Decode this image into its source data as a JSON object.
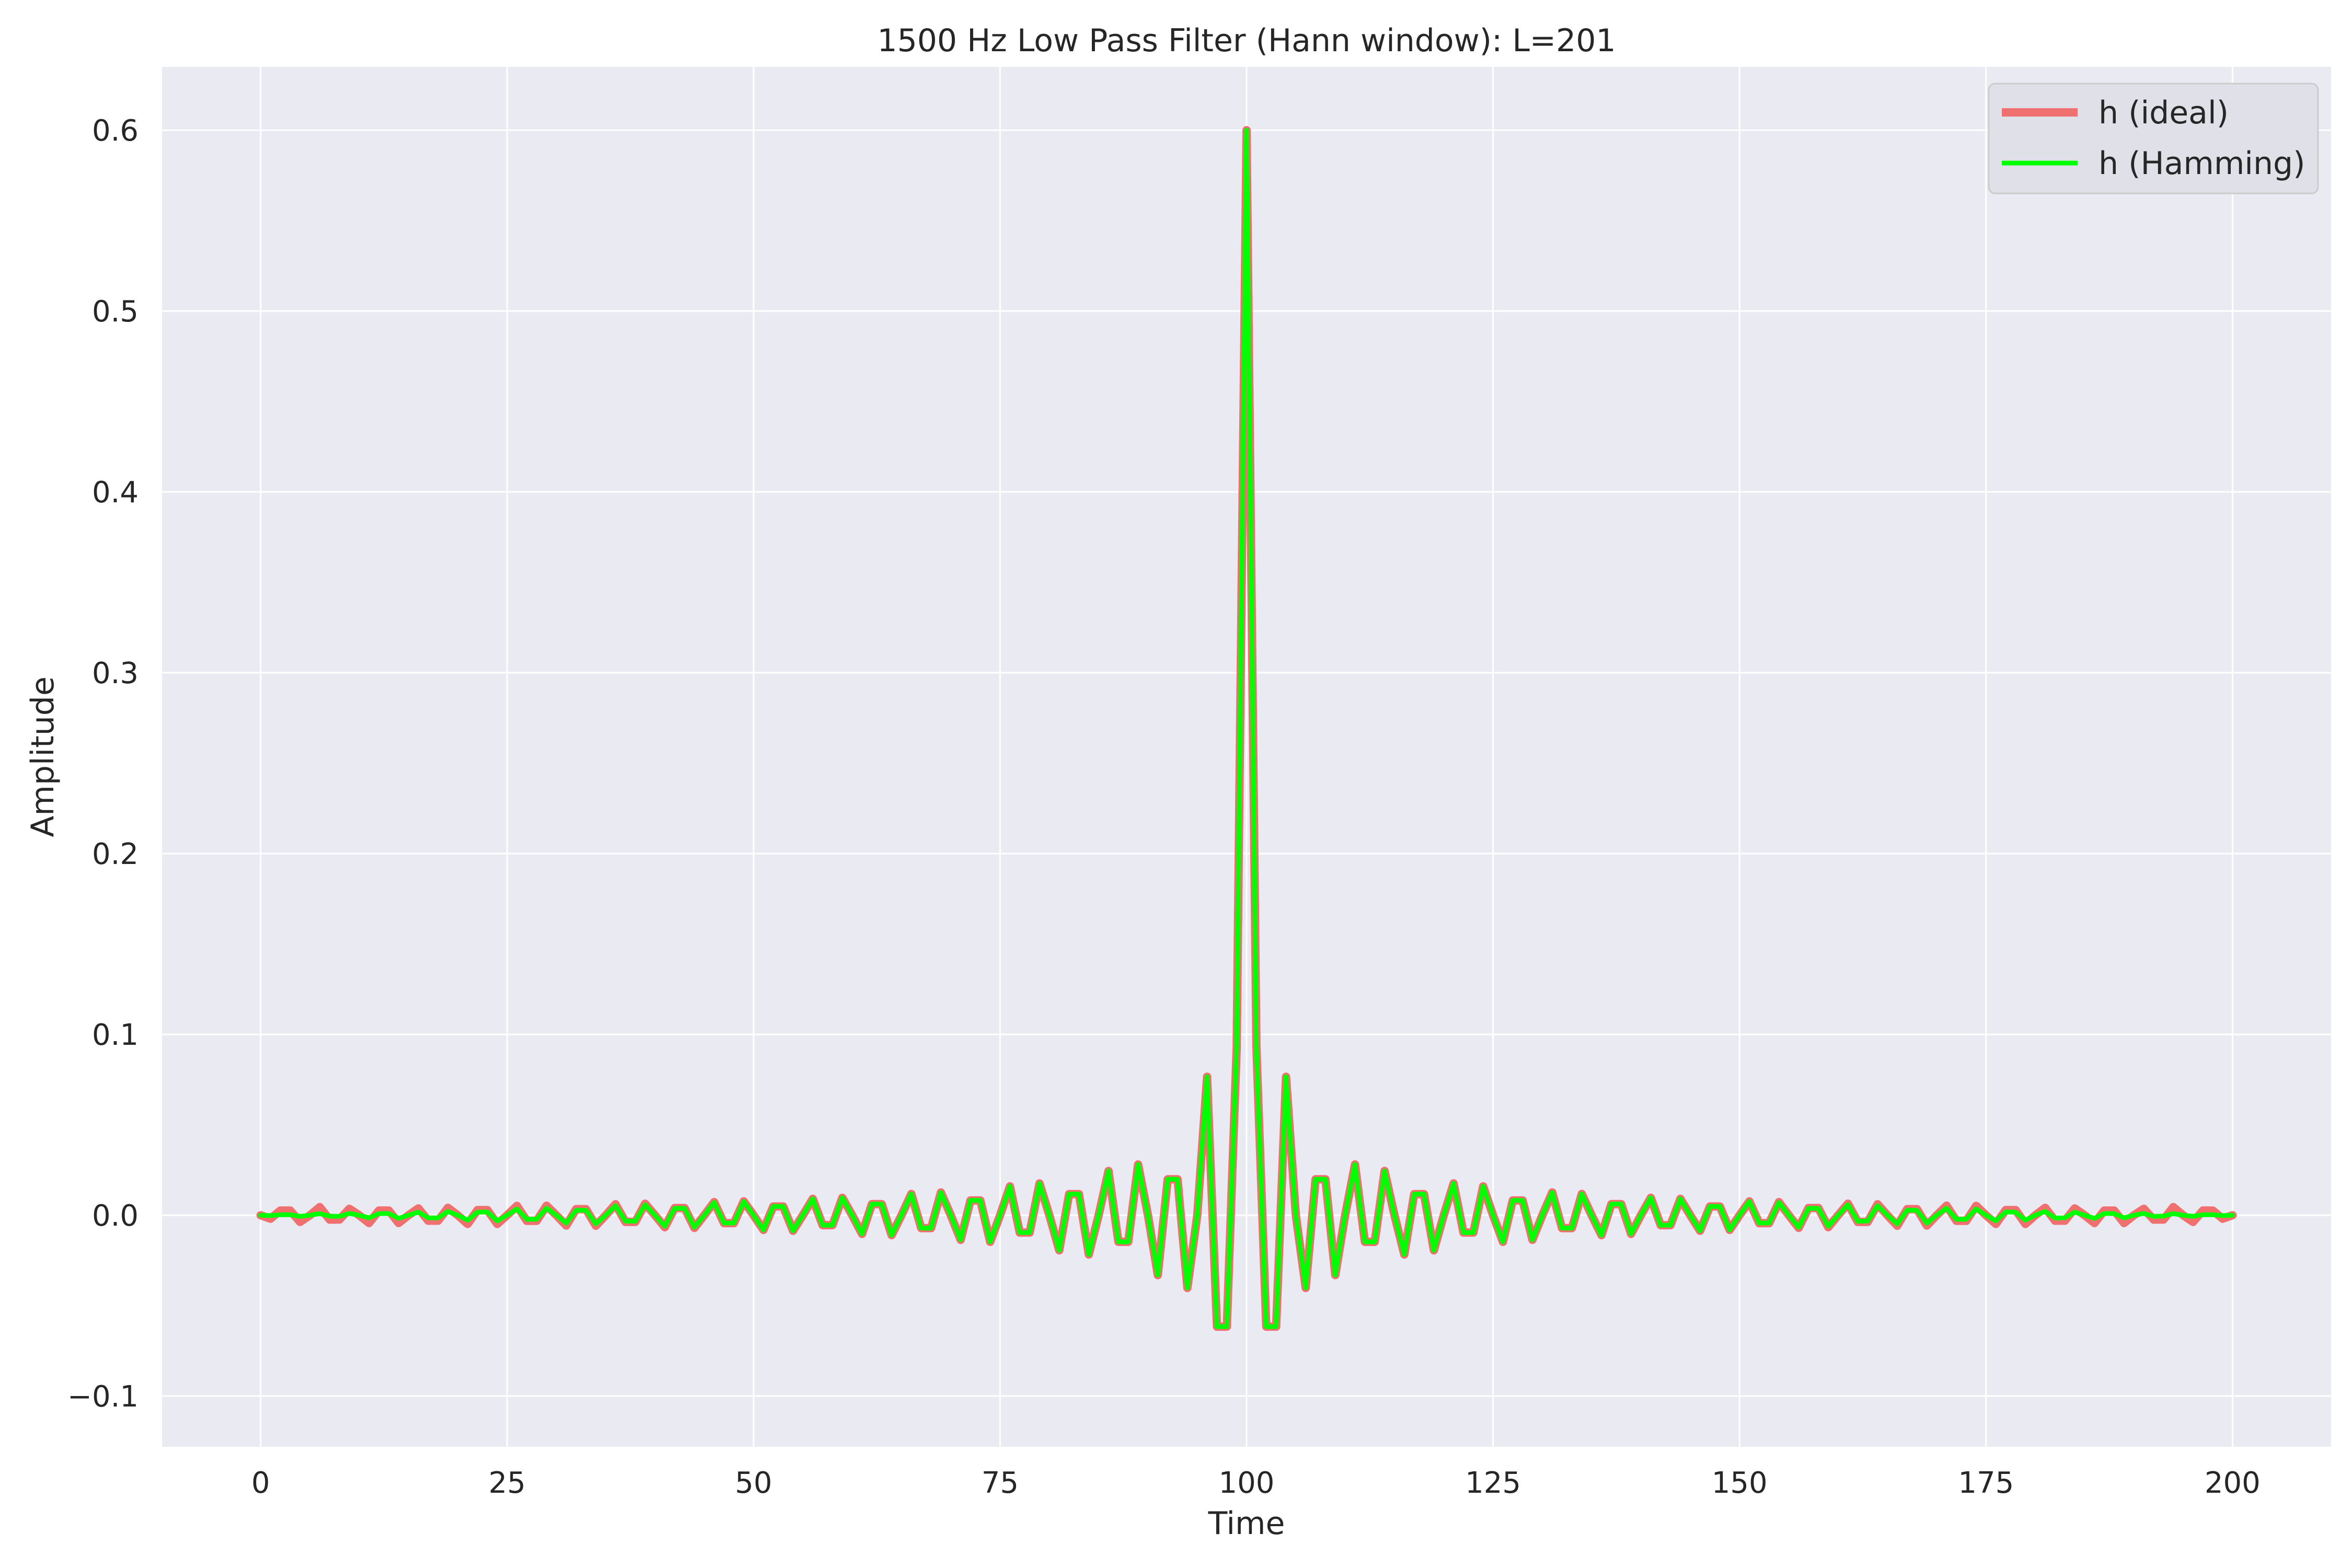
{
  "chart_data": {
    "type": "line",
    "title": "1500 Hz Low Pass Filter (Hann window): L=201",
    "xlabel": "Time",
    "ylabel": "Amplitude",
    "xlim": [
      -10,
      210
    ],
    "ylim": [
      -0.128,
      0.635
    ],
    "grid": true,
    "legend_position": "top-right",
    "x_ticks": [
      0,
      25,
      50,
      75,
      100,
      125,
      150,
      175,
      200
    ],
    "x_tick_labels": [
      "0",
      "25",
      "50",
      "75",
      "100",
      "125",
      "150",
      "175",
      "200"
    ],
    "y_ticks": [
      -0.1,
      0.0,
      0.1,
      0.2,
      0.3,
      0.4,
      0.5,
      0.6
    ],
    "y_tick_labels": [
      "−0.1",
      "0.0",
      "0.1",
      "0.2",
      "0.3",
      "0.4",
      "0.5",
      "0.6"
    ],
    "x": [
      0,
      1,
      2,
      3,
      4,
      5,
      6,
      7,
      8,
      9,
      10,
      11,
      12,
      13,
      14,
      15,
      16,
      17,
      18,
      19,
      20,
      21,
      22,
      23,
      24,
      25,
      26,
      27,
      28,
      29,
      30,
      31,
      32,
      33,
      34,
      35,
      36,
      37,
      38,
      39,
      40,
      41,
      42,
      43,
      44,
      45,
      46,
      47,
      48,
      49,
      50,
      51,
      52,
      53,
      54,
      55,
      56,
      57,
      58,
      59,
      60,
      61,
      62,
      63,
      64,
      65,
      66,
      67,
      68,
      69,
      70,
      71,
      72,
      73,
      74,
      75,
      76,
      77,
      78,
      79,
      80,
      81,
      82,
      83,
      84,
      85,
      86,
      87,
      88,
      89,
      90,
      91,
      92,
      93,
      94,
      95,
      96,
      97,
      98,
      99,
      100,
      101,
      102,
      103,
      104,
      105,
      106,
      107,
      108,
      109,
      110,
      111,
      112,
      113,
      114,
      115,
      116,
      117,
      118,
      119,
      120,
      121,
      122,
      123,
      124,
      125,
      126,
      127,
      128,
      129,
      130,
      131,
      132,
      133,
      134,
      135,
      136,
      137,
      138,
      139,
      140,
      141,
      142,
      143,
      144,
      145,
      146,
      147,
      148,
      149,
      150,
      151,
      152,
      153,
      154,
      155,
      156,
      157,
      158,
      159,
      160,
      161,
      162,
      163,
      164,
      165,
      166,
      167,
      168,
      169,
      170,
      171,
      172,
      173,
      174,
      175,
      176,
      177,
      178,
      179,
      180,
      181,
      182,
      183,
      184,
      185,
      186,
      187,
      188,
      189,
      190,
      191,
      192,
      193,
      194,
      195,
      196,
      197,
      198,
      199,
      200
    ],
    "series": [
      {
        "name": "h (ideal)",
        "color": "#f07070",
        "values": [
          0.0,
          -0.0019,
          0.0026,
          0.0026,
          -0.0037,
          0.0,
          0.0045,
          -0.0024,
          -0.0024,
          0.0036,
          0.0,
          -0.0043,
          0.0026,
          0.0026,
          -0.0043,
          0.0,
          0.0038,
          -0.003,
          -0.003,
          0.0041,
          0.0,
          -0.0048,
          0.0029,
          0.0029,
          -0.0048,
          0.0,
          0.0052,
          -0.0031,
          -0.0031,
          0.0053,
          0.0,
          -0.0057,
          0.0034,
          0.0034,
          -0.0058,
          0.0,
          0.0061,
          -0.0037,
          -0.0037,
          0.0064,
          0.0,
          -0.0066,
          0.004,
          0.004,
          -0.007,
          0.0,
          0.0073,
          -0.0044,
          -0.0044,
          0.0077,
          0.0,
          -0.0081,
          0.0049,
          0.0049,
          -0.0086,
          0.0,
          0.0091,
          -0.0055,
          -0.0055,
          0.0097,
          0.0,
          -0.0103,
          0.0062,
          0.0062,
          -0.011,
          0.0,
          0.0118,
          -0.0071,
          -0.0071,
          0.0126,
          0.0,
          -0.0136,
          0.0082,
          0.0082,
          -0.0147,
          0.0,
          0.016,
          -0.0096,
          -0.0096,
          0.0176,
          0.0,
          -0.0194,
          0.0117,
          0.0117,
          -0.0217,
          0.0,
          0.0245,
          -0.0147,
          -0.0147,
          0.0281,
          0.0,
          -0.0331,
          0.0199,
          0.0199,
          -0.0402,
          0.0,
          0.0766,
          -0.0616,
          -0.0616,
          0.0926,
          0.6,
          0.0926,
          -0.0616,
          -0.0616,
          0.0766,
          0.0,
          -0.0402,
          0.0199,
          0.0199,
          -0.0331,
          0.0,
          0.0281,
          -0.0147,
          -0.0147,
          0.0245,
          0.0,
          -0.0217,
          0.0117,
          0.0117,
          -0.0194,
          0.0,
          0.0176,
          -0.0096,
          -0.0096,
          0.016,
          0.0,
          -0.0147,
          0.0082,
          0.0082,
          -0.0136,
          0.0,
          0.0126,
          -0.0071,
          -0.0071,
          0.0118,
          0.0,
          -0.011,
          0.0062,
          0.0062,
          -0.0103,
          0.0,
          0.0097,
          -0.0055,
          -0.0055,
          0.0091,
          0.0,
          -0.0086,
          0.0049,
          0.0049,
          -0.0081,
          0.0,
          0.0077,
          -0.0044,
          -0.0044,
          0.0073,
          0.0,
          -0.007,
          0.004,
          0.004,
          -0.0066,
          0.0,
          0.0064,
          -0.0037,
          -0.0037,
          0.0061,
          0.0,
          -0.0058,
          0.0034,
          0.0034,
          -0.0057,
          0.0,
          0.0053,
          -0.0031,
          -0.0031,
          0.0052,
          0.0,
          -0.0048,
          0.0029,
          0.0029,
          -0.0048,
          0.0,
          0.0041,
          -0.003,
          -0.003,
          0.0038,
          0.0,
          -0.0043,
          0.0026,
          0.0026,
          -0.0043,
          0.0,
          0.0036,
          -0.0024,
          -0.0024,
          0.0045,
          0.0,
          -0.0037,
          0.0026,
          0.0026,
          -0.0019,
          0.0
        ]
      },
      {
        "name": "h (Hamming)",
        "color": "#00ff00",
        "values": [
          0.0,
          -0.0002,
          0.0003,
          0.0003,
          -0.0006,
          0.0,
          0.0009,
          -0.0005,
          -0.0006,
          0.001,
          0.0,
          -0.0014,
          0.0009,
          0.001,
          -0.0017,
          0.0,
          0.0017,
          -0.0014,
          -0.0015,
          0.0021,
          0.0,
          -0.0027,
          0.0017,
          0.0018,
          -0.0031,
          0.0,
          0.0035,
          -0.0022,
          -0.0022,
          0.0039,
          0.0,
          -0.0044,
          0.0027,
          0.0028,
          -0.0048,
          0.0,
          0.0053,
          -0.0032,
          -0.0033,
          0.0058,
          0.0,
          -0.0061,
          0.0038,
          0.0038,
          -0.0067,
          0.0,
          0.0071,
          -0.0043,
          -0.0043,
          0.0076,
          0.0,
          -0.0081,
          0.0049,
          0.0049,
          -0.0086,
          0.0,
          0.0091,
          -0.0055,
          -0.0055,
          0.0097,
          0.0,
          -0.0103,
          0.0062,
          0.0062,
          -0.011,
          0.0,
          0.0118,
          -0.0071,
          -0.0071,
          0.0126,
          0.0,
          -0.0136,
          0.0082,
          0.0082,
          -0.0147,
          0.0,
          0.016,
          -0.0096,
          -0.0096,
          0.0176,
          0.0,
          -0.0194,
          0.0117,
          0.0117,
          -0.0217,
          0.0,
          0.0245,
          -0.0147,
          -0.0147,
          0.0281,
          0.0,
          -0.0331,
          0.0199,
          0.0199,
          -0.0402,
          0.0,
          0.0766,
          -0.0616,
          -0.0616,
          0.0926,
          0.6,
          0.0926,
          -0.0616,
          -0.0616,
          0.0766,
          0.0,
          -0.0402,
          0.0199,
          0.0199,
          -0.0331,
          0.0,
          0.0281,
          -0.0147,
          -0.0147,
          0.0245,
          0.0,
          -0.0217,
          0.0117,
          0.0117,
          -0.0194,
          0.0,
          0.0176,
          -0.0096,
          -0.0096,
          0.016,
          0.0,
          -0.0147,
          0.0082,
          0.0082,
          -0.0136,
          0.0,
          0.0126,
          -0.0071,
          -0.0071,
          0.0118,
          0.0,
          -0.011,
          0.0062,
          0.0062,
          -0.0103,
          0.0,
          0.0097,
          -0.0055,
          -0.0055,
          0.0091,
          0.0,
          -0.0086,
          0.0049,
          0.0049,
          -0.0081,
          0.0,
          0.0076,
          -0.0043,
          -0.0043,
          0.0071,
          0.0,
          -0.0067,
          0.0038,
          0.0038,
          -0.0061,
          0.0,
          0.0058,
          -0.0033,
          -0.0032,
          0.0053,
          0.0,
          -0.0048,
          0.0028,
          0.0027,
          -0.0044,
          0.0,
          0.0039,
          -0.0022,
          -0.0022,
          0.0035,
          0.0,
          -0.0031,
          0.0018,
          0.0017,
          -0.0027,
          0.0,
          0.0021,
          -0.0015,
          -0.0014,
          0.0017,
          0.0,
          -0.0017,
          0.001,
          0.0009,
          -0.0014,
          0.0,
          0.001,
          -0.0006,
          -0.0005,
          0.0009,
          0.0,
          -0.0006,
          0.0003,
          0.0003,
          -0.0002,
          0.0
        ]
      }
    ]
  },
  "colors": {
    "axes_background": "#eaeaf2",
    "grid": "#ffffff",
    "text": "#262626",
    "legend_background": "#e0e0e8",
    "legend_border": "#cccccc"
  }
}
